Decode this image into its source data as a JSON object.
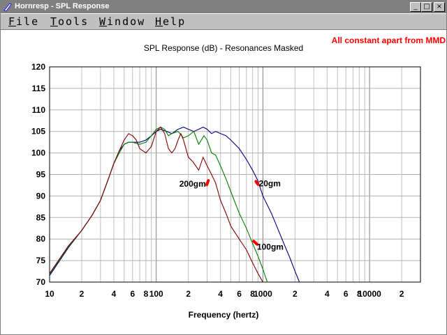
{
  "window": {
    "title": "Hornresp - SPL Response",
    "min_glyph": "_",
    "max_glyph": "□",
    "close_glyph": "×"
  },
  "menu": [
    {
      "key": "F",
      "rest": "ile"
    },
    {
      "key": "T",
      "rest": "ools"
    },
    {
      "key": "W",
      "rest": "indow"
    },
    {
      "key": "H",
      "rest": "elp"
    }
  ],
  "note": "All constant apart from MMD",
  "chart_data": {
    "type": "line",
    "title": "SPL Response (dB) - Resonances Masked",
    "xlabel": "Frequency (hertz)",
    "ylabel": "",
    "x_scale": "log",
    "xlim": [
      10,
      30000
    ],
    "ylim": [
      70,
      120
    ],
    "yticks": [
      "120",
      "115",
      "110",
      "105",
      "100",
      "95",
      "90",
      "85",
      "80",
      "75",
      "70"
    ],
    "xticks": [
      {
        "f": 10,
        "label": "10"
      },
      {
        "f": 20,
        "label": "2"
      },
      {
        "f": 40,
        "label": "4"
      },
      {
        "f": 60,
        "label": "6"
      },
      {
        "f": 80,
        "label": "8"
      },
      {
        "f": 100,
        "label": "100"
      },
      {
        "f": 200,
        "label": "2"
      },
      {
        "f": 400,
        "label": "4"
      },
      {
        "f": 600,
        "label": "6"
      },
      {
        "f": 800,
        "label": "8"
      },
      {
        "f": 1000,
        "label": "1000"
      },
      {
        "f": 2000,
        "label": "2"
      },
      {
        "f": 4000,
        "label": "4"
      },
      {
        "f": 6000,
        "label": "6"
      },
      {
        "f": 8000,
        "label": "8"
      },
      {
        "f": 10000,
        "label": "10000"
      },
      {
        "f": 20000,
        "label": "2"
      }
    ],
    "grid": true,
    "series": [
      {
        "name": "20gm",
        "color": "#000080",
        "points": [
          [
            10,
            71.5
          ],
          [
            15,
            78
          ],
          [
            20,
            82
          ],
          [
            25,
            85.5
          ],
          [
            30,
            89
          ],
          [
            35,
            93.5
          ],
          [
            40,
            97.5
          ],
          [
            45,
            100.5
          ],
          [
            50,
            102
          ],
          [
            55,
            102.5
          ],
          [
            60,
            102.5
          ],
          [
            70,
            102.5
          ],
          [
            80,
            103
          ],
          [
            90,
            104
          ],
          [
            100,
            105
          ],
          [
            110,
            105.5
          ],
          [
            125,
            105
          ],
          [
            140,
            104.5
          ],
          [
            160,
            105.5
          ],
          [
            180,
            106
          ],
          [
            200,
            105.5
          ],
          [
            225,
            105
          ],
          [
            250,
            105.5
          ],
          [
            275,
            106
          ],
          [
            300,
            105.5
          ],
          [
            330,
            104.5
          ],
          [
            360,
            105
          ],
          [
            400,
            104.5
          ],
          [
            450,
            104
          ],
          [
            500,
            103
          ],
          [
            600,
            101
          ],
          [
            700,
            98.5
          ],
          [
            800,
            96
          ],
          [
            900,
            93.5
          ],
          [
            1000,
            90
          ],
          [
            1200,
            86
          ],
          [
            1400,
            82
          ],
          [
            1600,
            78.5
          ],
          [
            1800,
            75.5
          ],
          [
            2000,
            72.5
          ],
          [
            2200,
            70
          ]
        ]
      },
      {
        "name": "100gm",
        "color": "#008000",
        "points": [
          [
            10,
            71.8
          ],
          [
            15,
            78.2
          ],
          [
            20,
            82
          ],
          [
            25,
            85.5
          ],
          [
            30,
            89
          ],
          [
            35,
            93.5
          ],
          [
            40,
            97.5
          ],
          [
            45,
            100
          ],
          [
            50,
            102
          ],
          [
            55,
            102.5
          ],
          [
            60,
            102.5
          ],
          [
            70,
            102
          ],
          [
            80,
            102.5
          ],
          [
            90,
            104
          ],
          [
            100,
            105.5
          ],
          [
            110,
            106
          ],
          [
            120,
            105.5
          ],
          [
            130,
            104
          ],
          [
            140,
            104.5
          ],
          [
            160,
            105
          ],
          [
            180,
            103.5
          ],
          [
            200,
            104
          ],
          [
            225,
            105
          ],
          [
            250,
            102
          ],
          [
            280,
            104
          ],
          [
            300,
            103
          ],
          [
            330,
            100
          ],
          [
            360,
            99.5
          ],
          [
            400,
            97
          ],
          [
            450,
            94
          ],
          [
            500,
            91
          ],
          [
            600,
            86
          ],
          [
            700,
            82.5
          ],
          [
            800,
            79
          ],
          [
            900,
            76
          ],
          [
            1000,
            73
          ],
          [
            1100,
            70
          ]
        ]
      },
      {
        "name": "200gm",
        "color": "#800000",
        "points": [
          [
            10,
            72
          ],
          [
            15,
            78.4
          ],
          [
            20,
            82
          ],
          [
            25,
            85.5
          ],
          [
            30,
            89
          ],
          [
            35,
            93.5
          ],
          [
            40,
            97.5
          ],
          [
            45,
            100.5
          ],
          [
            50,
            103
          ],
          [
            55,
            104.5
          ],
          [
            60,
            104
          ],
          [
            65,
            103
          ],
          [
            70,
            101
          ],
          [
            80,
            100
          ],
          [
            90,
            101.5
          ],
          [
            100,
            105
          ],
          [
            110,
            106
          ],
          [
            120,
            104.5
          ],
          [
            130,
            101
          ],
          [
            140,
            100
          ],
          [
            150,
            101
          ],
          [
            160,
            103
          ],
          [
            170,
            104.5
          ],
          [
            180,
            103
          ],
          [
            200,
            99
          ],
          [
            220,
            98
          ],
          [
            250,
            96
          ],
          [
            275,
            99
          ],
          [
            300,
            97
          ],
          [
            330,
            95
          ],
          [
            360,
            93
          ],
          [
            400,
            89
          ],
          [
            450,
            86
          ],
          [
            500,
            83
          ],
          [
            600,
            80
          ],
          [
            700,
            77.5
          ],
          [
            800,
            74.5
          ],
          [
            900,
            72
          ],
          [
            1000,
            70
          ]
        ]
      }
    ],
    "annotations": [
      "200gm",
      "20gm",
      "100gm"
    ]
  }
}
